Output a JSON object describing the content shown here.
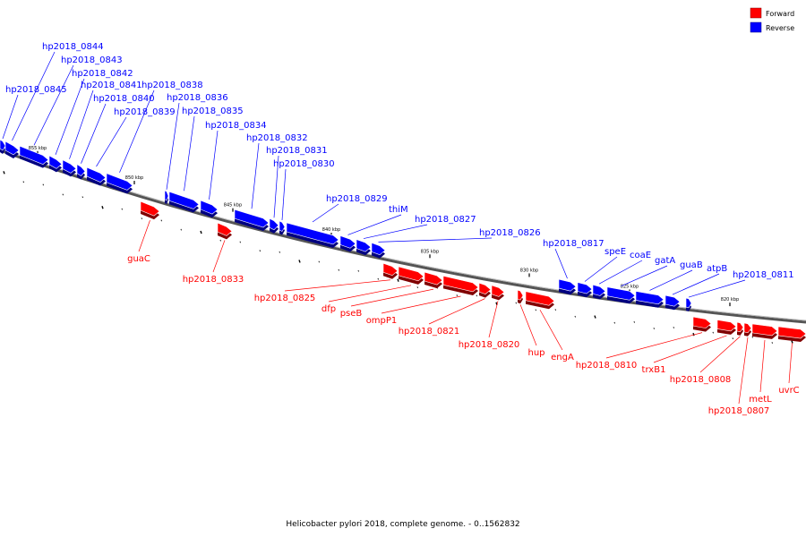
{
  "legend": {
    "forward_label": "Forward",
    "reverse_label": "Reverse",
    "forward_color": "#ff0000",
    "reverse_color": "#0000ff"
  },
  "caption": "Helicobacter pylori 2018, complete genome. - 0..1562832",
  "scale_ticks": [
    "855 kbp",
    "850 kbp",
    "845 kbp",
    "840 kbp",
    "835 kbp",
    "830 kbp",
    "825 kbp",
    "820 kbp"
  ],
  "genes": {
    "reverse": [
      "hp2018_0845",
      "hp2018_0844",
      "hp2018_0843",
      "hp2018_0842",
      "hp2018_0841",
      "hp2018_0840",
      "hp2018_0839",
      "hp2018_0838",
      "hp2018_0836",
      "hp2018_0835",
      "hp2018_0834",
      "hp2018_0832",
      "hp2018_0831",
      "hp2018_0830",
      "hp2018_0829",
      "thiM",
      "hp2018_0827",
      "hp2018_0826",
      "hp2018_0817",
      "speE",
      "coaE",
      "gatA",
      "guaB",
      "atpB",
      "hp2018_0811"
    ],
    "forward": [
      "guaC",
      "hp2018_0833",
      "hp2018_0825",
      "dfp",
      "pseB",
      "ompP1",
      "hp2018_0821",
      "hp2018_0820",
      "hup",
      "engA",
      "hp2018_0810",
      "trxB1",
      "hp2018_0808",
      "hp2018_0807",
      "metL",
      "uvrC"
    ]
  }
}
